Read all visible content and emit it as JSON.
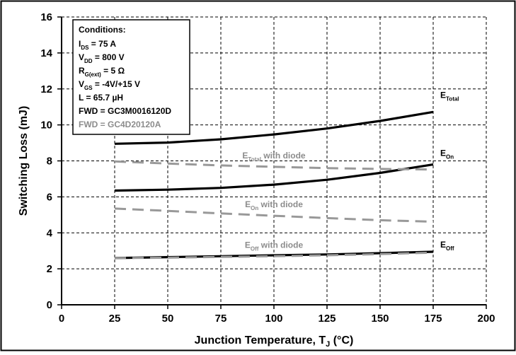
{
  "chart_data": {
    "type": "line",
    "title": "",
    "xlabel": {
      "main": "Junction Temperature, T",
      "sub": "J",
      "tail": " (°C)"
    },
    "ylabel": "Switching Loss (mJ)",
    "xlim": [
      0,
      200
    ],
    "ylim": [
      0,
      16
    ],
    "xticks": [
      0,
      25,
      50,
      75,
      100,
      125,
      150,
      175,
      200
    ],
    "yticks": [
      0,
      2,
      4,
      6,
      8,
      10,
      12,
      14,
      16
    ],
    "grid": true,
    "x": [
      25,
      50,
      75,
      100,
      125,
      150,
      175
    ],
    "series": [
      {
        "name": {
          "main": "E",
          "sub": "Total",
          "tail": ""
        },
        "style": "solid",
        "color": "#000000",
        "values": [
          8.95,
          9.02,
          9.2,
          9.47,
          9.8,
          10.22,
          10.72
        ]
      },
      {
        "name": {
          "main": "E",
          "sub": "On",
          "tail": ""
        },
        "style": "solid",
        "color": "#000000",
        "values": [
          6.35,
          6.4,
          6.5,
          6.68,
          6.95,
          7.33,
          7.8
        ]
      },
      {
        "name": {
          "main": "E",
          "sub": "Off",
          "tail": ""
        },
        "style": "solid",
        "color": "#000000",
        "values": [
          2.6,
          2.65,
          2.7,
          2.75,
          2.8,
          2.87,
          2.95
        ]
      },
      {
        "name": {
          "main": "E",
          "sub": "Total",
          "tail": " with diode"
        },
        "style": "dashed",
        "color": "#999999",
        "values": [
          7.97,
          7.85,
          7.75,
          7.67,
          7.6,
          7.55,
          7.52
        ]
      },
      {
        "name": {
          "main": "E",
          "sub": "On",
          "tail": " with diode"
        },
        "style": "dashed",
        "color": "#999999",
        "values": [
          5.35,
          5.22,
          5.08,
          4.95,
          4.82,
          4.7,
          4.62
        ]
      },
      {
        "name": {
          "main": "E",
          "sub": "Off",
          "tail": " with diode"
        },
        "style": "dashed",
        "color": "#999999",
        "values": [
          2.6,
          2.62,
          2.66,
          2.7,
          2.75,
          2.82,
          2.9
        ]
      }
    ],
    "conditions": {
      "title": "Conditions:",
      "lines": [
        {
          "main": "I",
          "sub": "DS",
          "tail": " = 75 A",
          "color": "#000000"
        },
        {
          "main": "V",
          "sub": "DD",
          "tail": " = 800 V",
          "color": "#000000"
        },
        {
          "main": "R",
          "sub": "G(ext)",
          "tail": " = 5 Ω",
          "color": "#000000"
        },
        {
          "main": "V",
          "sub": "GS",
          "tail": " = -4V/+15 V",
          "color": "#000000"
        },
        {
          "main": "L = 65.7 µH",
          "sub": "",
          "tail": "",
          "color": "#000000"
        },
        {
          "main": "FWD = GC3M0016120D",
          "sub": "",
          "tail": "",
          "color": "#000000"
        },
        {
          "main": "FWD = GC4D20120A",
          "sub": "",
          "tail": "",
          "color": "#8c8c8c"
        }
      ]
    }
  }
}
